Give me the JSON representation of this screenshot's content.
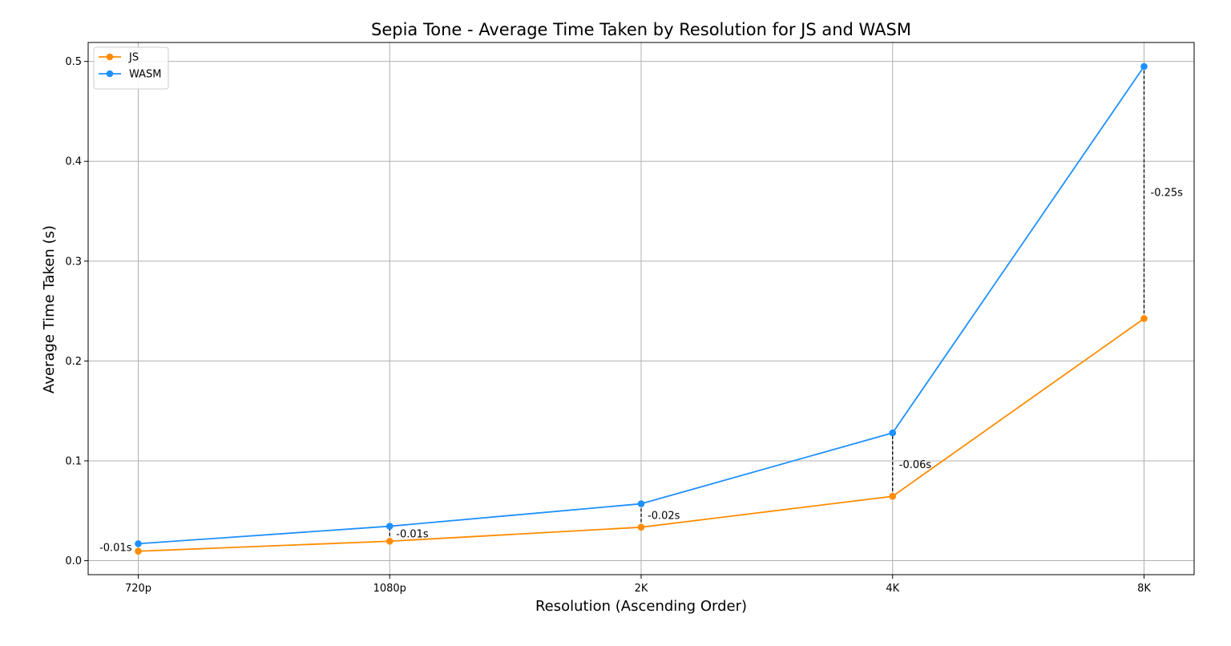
{
  "chart_data": {
    "type": "line",
    "title": "Sepia Tone - Average Time Taken by Resolution for JS and WASM",
    "xlabel": "Resolution (Ascending Order)",
    "ylabel": "Average Time Taken (s)",
    "categories": [
      "720p",
      "1080p",
      "2K",
      "4K",
      "8K"
    ],
    "ylim": [
      -0.014,
      0.519
    ],
    "yticks": [
      0.0,
      0.1,
      0.2,
      0.3,
      0.4,
      0.5
    ],
    "ytick_labels": [
      "0.0",
      "0.1",
      "0.2",
      "0.3",
      "0.4",
      "0.5"
    ],
    "grid": true,
    "legend_position": "top-left",
    "series": [
      {
        "name": "JS",
        "color": "#ff8c00",
        "values": [
          0.0095,
          0.0195,
          0.0335,
          0.0645,
          0.2425
        ]
      },
      {
        "name": "WASM",
        "color": "#1e90ff",
        "values": [
          0.017,
          0.0345,
          0.057,
          0.128,
          0.495
        ]
      }
    ],
    "annotations": [
      {
        "text": "-0.01s",
        "category": "720p"
      },
      {
        "text": "-0.01s",
        "category": "1080p"
      },
      {
        "text": "-0.02s",
        "category": "2K"
      },
      {
        "text": "-0.06s",
        "category": "4K"
      },
      {
        "text": "-0.25s",
        "category": "8K"
      }
    ]
  }
}
